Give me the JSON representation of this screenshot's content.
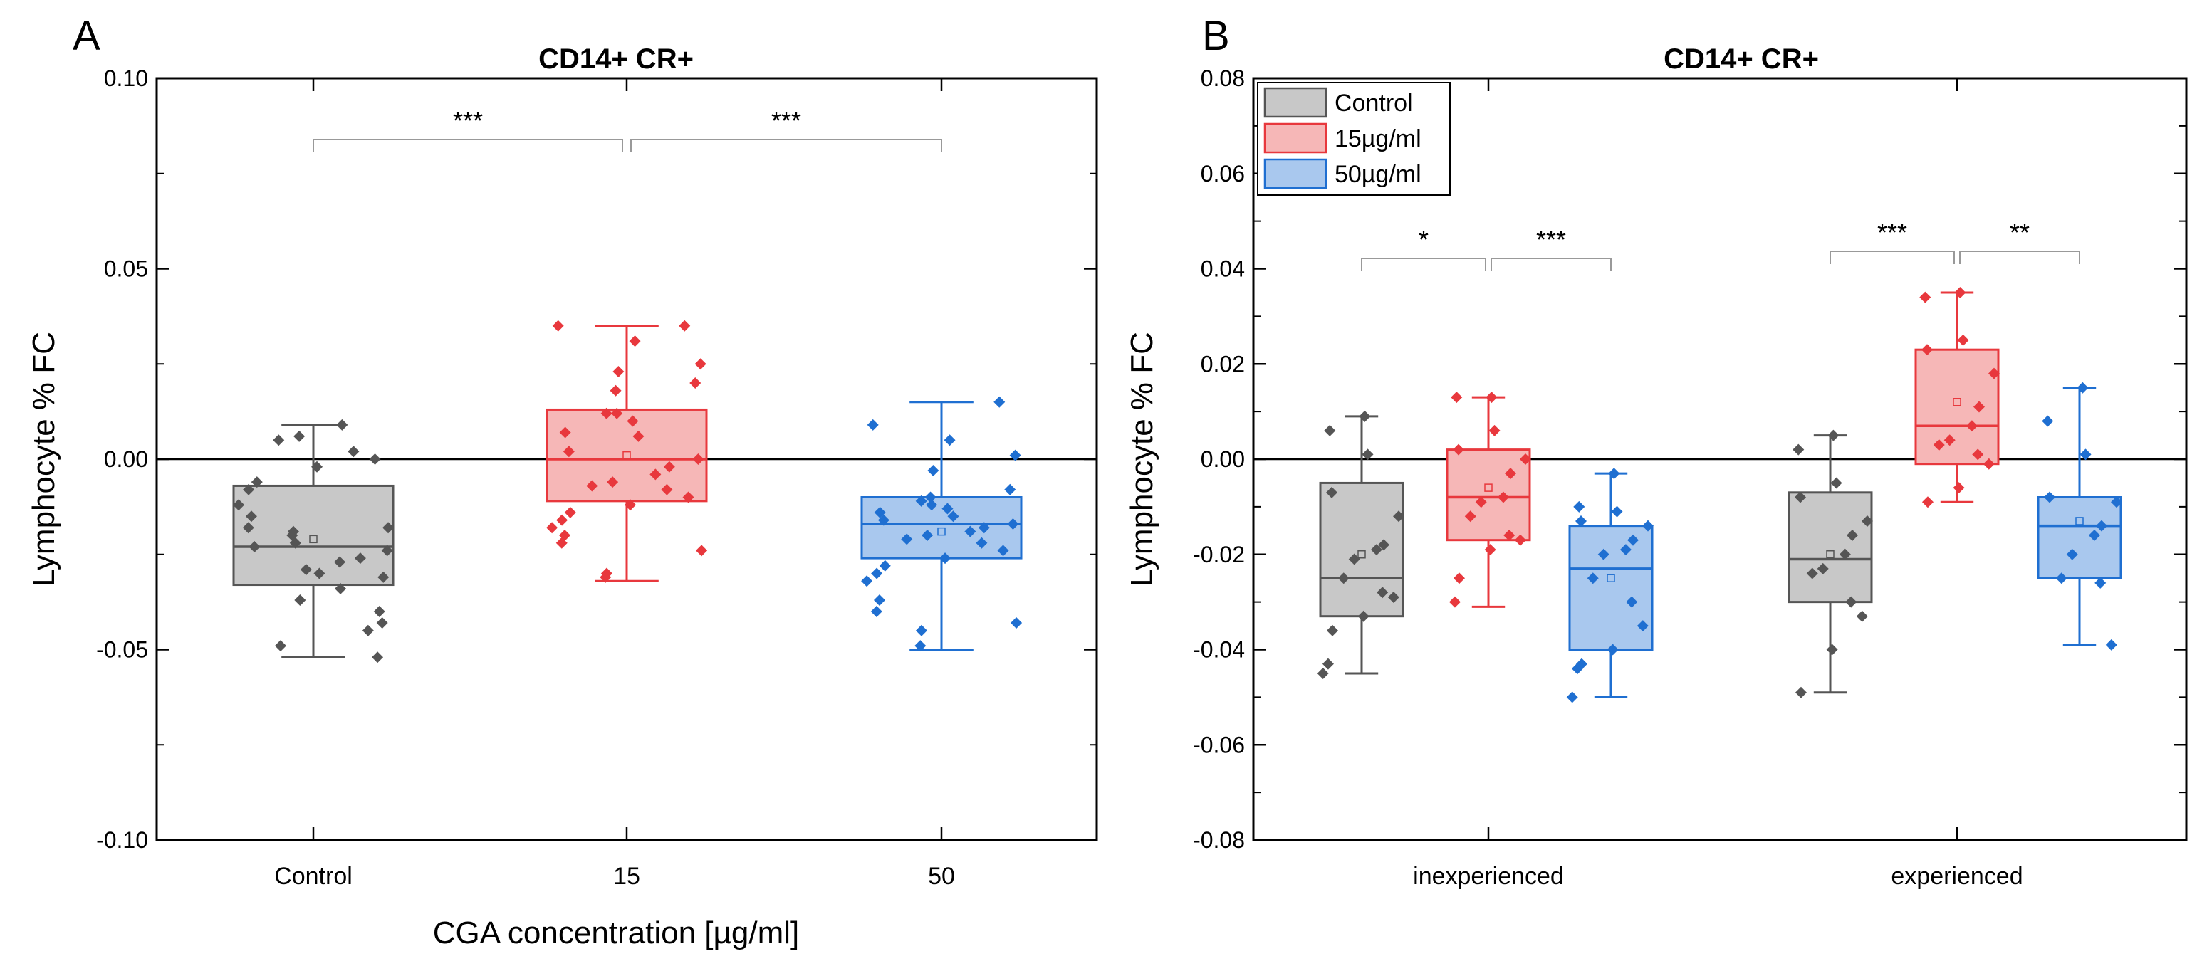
{
  "chart_data": [
    {
      "panel": "A",
      "type": "box",
      "title": "CD14+ CR+",
      "xlabel": "CGA concentration [µg/ml]",
      "ylabel": "Lymphocyte % FC",
      "ylim": [
        -0.1,
        0.1
      ],
      "yticks": [
        -0.1,
        -0.05,
        0.0,
        0.05,
        0.1
      ],
      "ytick_labels": [
        "-0.10",
        "-0.05",
        "0.00",
        "0.05",
        "0.10"
      ],
      "categories": [
        "Control",
        "15",
        "50"
      ],
      "reference_line": 0,
      "boxes": [
        {
          "group": "Control",
          "color": "#555555",
          "fill": "#c8c8c8",
          "whisker_low": -0.052,
          "q1": -0.033,
          "median": -0.023,
          "q3": -0.007,
          "whisker_high": 0.009,
          "mean": -0.021,
          "points": [
            0.009,
            0.006,
            0.005,
            0.002,
            0.0,
            -0.002,
            -0.006,
            -0.008,
            -0.012,
            -0.015,
            -0.018,
            -0.018,
            -0.019,
            -0.02,
            -0.022,
            -0.023,
            -0.024,
            -0.026,
            -0.027,
            -0.029,
            -0.03,
            -0.031,
            -0.034,
            -0.037,
            -0.04,
            -0.043,
            -0.045,
            -0.049,
            -0.052
          ]
        },
        {
          "group": "15",
          "color": "#e8383d",
          "fill": "#f6b7b7",
          "whisker_low": -0.032,
          "q1": -0.011,
          "median": 0.0,
          "q3": 0.013,
          "whisker_high": 0.035,
          "mean": 0.001,
          "points": [
            0.035,
            0.035,
            0.031,
            0.025,
            0.023,
            0.02,
            0.018,
            0.012,
            0.012,
            0.01,
            0.007,
            0.006,
            0.002,
            0.0,
            -0.002,
            -0.004,
            -0.006,
            -0.007,
            -0.008,
            -0.01,
            -0.012,
            -0.014,
            -0.016,
            -0.018,
            -0.02,
            -0.022,
            -0.024,
            -0.03,
            -0.031
          ]
        },
        {
          "group": "50",
          "color": "#1f6fd1",
          "fill": "#a9c8ee",
          "whisker_low": -0.05,
          "q1": -0.026,
          "median": -0.017,
          "q3": -0.01,
          "whisker_high": 0.015,
          "mean": -0.019,
          "points": [
            0.015,
            0.009,
            0.005,
            0.001,
            -0.003,
            -0.008,
            -0.01,
            -0.011,
            -0.012,
            -0.013,
            -0.014,
            -0.015,
            -0.016,
            -0.017,
            -0.018,
            -0.019,
            -0.02,
            -0.021,
            -0.022,
            -0.024,
            -0.026,
            -0.028,
            -0.03,
            -0.032,
            -0.037,
            -0.04,
            -0.043,
            -0.045,
            -0.049
          ]
        }
      ],
      "significance": [
        {
          "from": "Control",
          "to": "15",
          "label": "***"
        },
        {
          "from": "15",
          "to": "50",
          "label": "***"
        }
      ]
    },
    {
      "panel": "B",
      "type": "box",
      "title": "CD14+ CR+",
      "xlabel": "",
      "ylabel": "Lymphocyte % FC",
      "ylim": [
        -0.08,
        0.08
      ],
      "yticks": [
        -0.08,
        -0.06,
        -0.04,
        -0.02,
        0.0,
        0.02,
        0.04,
        0.06,
        0.08
      ],
      "ytick_labels": [
        "-0.08",
        "-0.06",
        "-0.04",
        "-0.02",
        "0.00",
        "0.02",
        "0.04",
        "0.06",
        "0.08"
      ],
      "categories": [
        "inexperienced",
        "experienced"
      ],
      "reference_line": 0,
      "legend": [
        {
          "label": "Control",
          "color": "#555555",
          "fill": "#c8c8c8"
        },
        {
          "label": "15µg/ml",
          "color": "#e8383d",
          "fill": "#f6b7b7"
        },
        {
          "label": "50µg/ml",
          "color": "#1f6fd1",
          "fill": "#a9c8ee"
        }
      ],
      "legend_position": "top-left",
      "boxes": [
        {
          "category": "inexperienced",
          "group": "Control",
          "color": "#555555",
          "fill": "#c8c8c8",
          "whisker_low": -0.045,
          "q1": -0.033,
          "median": -0.025,
          "q3": -0.005,
          "whisker_high": 0.009,
          "mean": -0.02,
          "points": [
            0.009,
            0.006,
            0.001,
            -0.007,
            -0.012,
            -0.018,
            -0.019,
            -0.021,
            -0.025,
            -0.028,
            -0.029,
            -0.033,
            -0.036,
            -0.043,
            -0.045
          ]
        },
        {
          "category": "inexperienced",
          "group": "15µg/ml",
          "color": "#e8383d",
          "fill": "#f6b7b7",
          "whisker_low": -0.031,
          "q1": -0.017,
          "median": -0.008,
          "q3": 0.002,
          "whisker_high": 0.013,
          "mean": -0.006,
          "points": [
            0.013,
            0.013,
            0.006,
            0.002,
            0.0,
            -0.003,
            -0.008,
            -0.009,
            -0.012,
            -0.016,
            -0.017,
            -0.019,
            -0.025,
            -0.03
          ]
        },
        {
          "category": "inexperienced",
          "group": "50µg/ml",
          "color": "#1f6fd1",
          "fill": "#a9c8ee",
          "whisker_low": -0.05,
          "q1": -0.04,
          "median": -0.023,
          "q3": -0.014,
          "whisker_high": -0.003,
          "mean": -0.025,
          "points": [
            -0.003,
            -0.01,
            -0.011,
            -0.013,
            -0.014,
            -0.017,
            -0.019,
            -0.02,
            -0.025,
            -0.03,
            -0.035,
            -0.04,
            -0.043,
            -0.044,
            -0.05
          ]
        },
        {
          "category": "experienced",
          "group": "Control",
          "color": "#555555",
          "fill": "#c8c8c8",
          "whisker_low": -0.049,
          "q1": -0.03,
          "median": -0.021,
          "q3": -0.007,
          "whisker_high": 0.005,
          "mean": -0.02,
          "points": [
            0.005,
            0.002,
            -0.005,
            -0.008,
            -0.013,
            -0.016,
            -0.02,
            -0.023,
            -0.024,
            -0.03,
            -0.033,
            -0.04,
            -0.049
          ]
        },
        {
          "category": "experienced",
          "group": "15µg/ml",
          "color": "#e8383d",
          "fill": "#f6b7b7",
          "whisker_low": -0.009,
          "q1": -0.001,
          "median": 0.007,
          "q3": 0.023,
          "whisker_high": 0.035,
          "mean": 0.012,
          "points": [
            0.035,
            0.034,
            0.025,
            0.023,
            0.018,
            0.011,
            0.007,
            0.004,
            0.003,
            0.001,
            -0.001,
            -0.006,
            -0.009
          ]
        },
        {
          "category": "experienced",
          "group": "50µg/ml",
          "color": "#1f6fd1",
          "fill": "#a9c8ee",
          "whisker_low": -0.039,
          "q1": -0.025,
          "median": -0.014,
          "q3": -0.008,
          "whisker_high": 0.015,
          "mean": -0.013,
          "points": [
            0.015,
            0.008,
            0.001,
            -0.008,
            -0.009,
            -0.014,
            -0.016,
            -0.02,
            -0.025,
            -0.026,
            -0.039
          ]
        }
      ],
      "significance": [
        {
          "category": "inexperienced",
          "from": "Control",
          "to": "15µg/ml",
          "label": "*"
        },
        {
          "category": "inexperienced",
          "from": "15µg/ml",
          "to": "50µg/ml",
          "label": "***"
        },
        {
          "category": "experienced",
          "from": "Control",
          "to": "15µg/ml",
          "label": "***"
        },
        {
          "category": "experienced",
          "from": "15µg/ml",
          "to": "50µg/ml",
          "label": "**"
        }
      ]
    }
  ]
}
